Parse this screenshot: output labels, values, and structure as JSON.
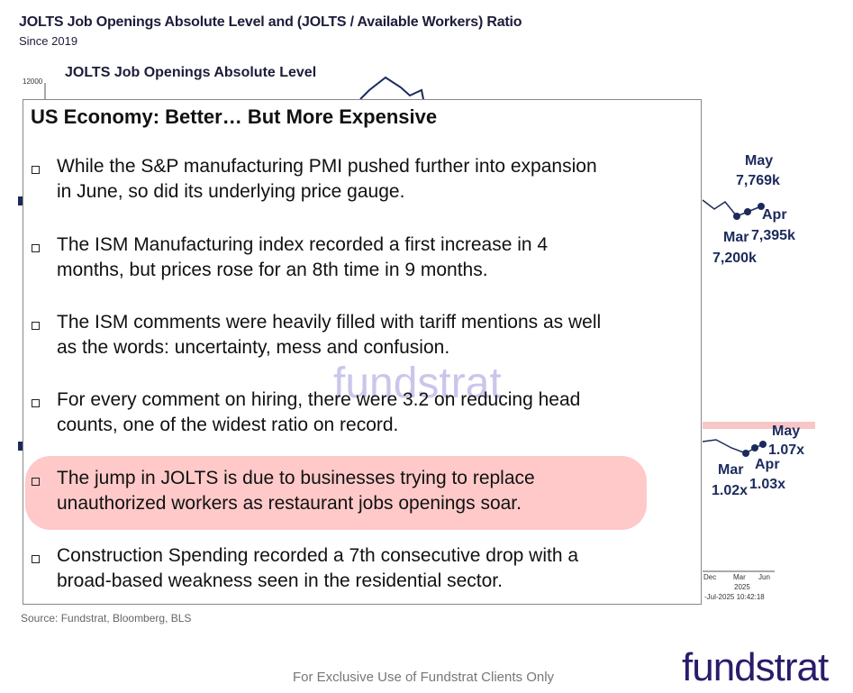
{
  "header": {
    "title": "JOLTS Job Openings Absolute Level and (JOLTS / Available Workers) Ratio",
    "subtitle": "Since 2019"
  },
  "background_chart": {
    "title": "JOLTS Job Openings Absolute Level",
    "tick_label": "12000",
    "openings_labels": [
      {
        "month": "May",
        "value": "7,769k"
      },
      {
        "month": "Apr",
        "value": "7,395k"
      },
      {
        "month": "Mar",
        "value": "7,200k"
      }
    ],
    "ratio_labels": [
      {
        "month": "May",
        "value": "1.07x"
      },
      {
        "month": "Apr",
        "value": "1.03x"
      },
      {
        "month": "Mar",
        "value": "1.02x"
      }
    ],
    "axis_labels": [
      "Dec",
      "Mar",
      "Jun"
    ],
    "year": "2025",
    "timestamp": "-Jul-2025 10:42:18"
  },
  "panel": {
    "title": "US Economy: Better… But More Expensive",
    "bullets": [
      [
        "While the S&P manufacturing PMI pushed further into expansion",
        "in June, so did its underlying price gauge."
      ],
      [
        "The ISM Manufacturing index recorded a first increase in 4",
        "months, but prices rose for an 8th time in 9 months."
      ],
      [
        "The ISM comments were heavily filled with tariff mentions as well",
        "as the words: uncertainty, mess and confusion."
      ],
      [
        "For every comment on hiring, there were 3.2 on reducing head",
        "counts, one of the widest ratio on record."
      ],
      [
        "The jump in JOLTS is due to businesses trying to replace",
        "unauthorized workers as restaurant jobs openings soar."
      ],
      [
        "Construction Spending recorded a 7th consecutive drop with a",
        "broad-based weakness seen in the residential sector."
      ]
    ]
  },
  "watermark": "fundstrat",
  "source": "Source: Fundstrat, Bloomberg, BLS",
  "footer": "For Exclusive Use of Fundstrat Clients Only",
  "logo": "fundstrat"
}
